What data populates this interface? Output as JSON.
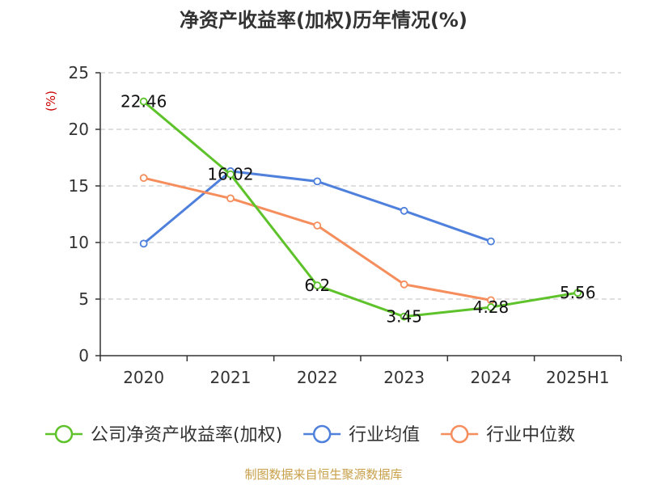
{
  "chart_data": {
    "type": "line",
    "title": "净资产收益率(加权)历年情况(%)",
    "ylabel": "(%)",
    "ylim": [
      0,
      25
    ],
    "yticks": [
      0,
      5,
      10,
      15,
      20,
      25
    ],
    "categories": [
      "2020",
      "2021",
      "2022",
      "2023",
      "2024",
      "2025H1"
    ],
    "grid": true,
    "legend_position": "bottom",
    "series": [
      {
        "name": "公司净资产收益率(加权)",
        "color": "#5ec22b",
        "values": [
          22.46,
          16.02,
          6.2,
          3.45,
          4.28,
          5.56
        ],
        "labels": [
          "22.46",
          "16.02",
          "6.2",
          "3.45",
          "4.28",
          "5.56"
        ]
      },
      {
        "name": "行业均值",
        "color": "#4e80dc",
        "values": [
          9.9,
          16.3,
          15.4,
          12.8,
          10.1,
          null
        ]
      },
      {
        "name": "行业中位数",
        "color": "#f58e5c",
        "values": [
          15.7,
          13.9,
          11.5,
          6.3,
          4.9,
          null
        ]
      }
    ]
  },
  "source": "制图数据来自恒生聚源数据库",
  "colors": {
    "title": "#333333",
    "unit": "#cc0000",
    "source": "#c8a04a",
    "grid": "#cccccc"
  }
}
